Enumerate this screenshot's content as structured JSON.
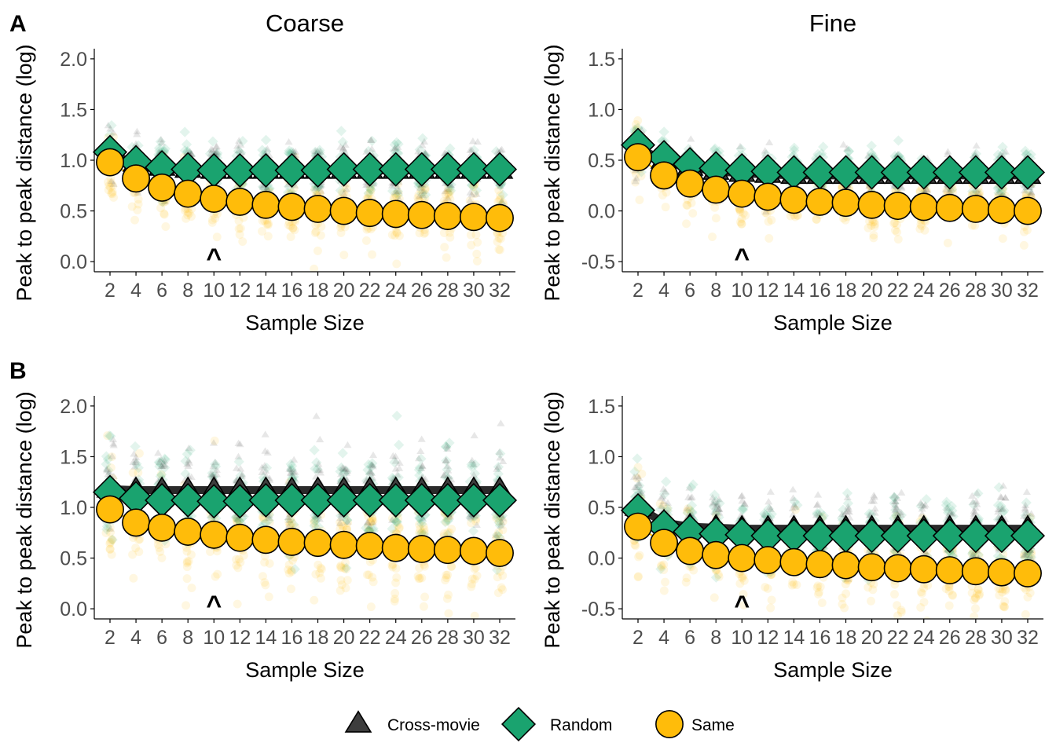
{
  "colors": {
    "Cross-movie": "#3d3d3d",
    "Random": "#1aa36f",
    "Same": "#ffbc0a"
  },
  "legend": [
    {
      "name": "Cross-movie",
      "shape": "triangle"
    },
    {
      "name": "Random",
      "shape": "diamond"
    },
    {
      "name": "Same",
      "shape": "circle"
    }
  ],
  "chart_data": [
    {
      "type": "scatter",
      "panel_tag": "A",
      "facet_title": "Coarse",
      "xlabel": "Sample Size",
      "ylabel": "Peak to peak distance (log)",
      "x": [
        2,
        4,
        6,
        8,
        10,
        12,
        14,
        16,
        18,
        20,
        22,
        24,
        26,
        28,
        30,
        32
      ],
      "x_tick_labels": [
        "2",
        "4",
        "6",
        "8",
        "10",
        "12",
        "14",
        "16",
        "18",
        "20",
        "22",
        "24",
        "26",
        "28",
        "30",
        "32"
      ],
      "ylim": [
        -0.1,
        2.1
      ],
      "y_ticks": [
        0.0,
        0.5,
        1.0,
        1.5,
        2.0
      ],
      "y_tick_labels": [
        "0.0",
        "0.5",
        "1.0",
        "1.5",
        "2.0"
      ],
      "marker_x": 10,
      "marker_symbol": "^",
      "series": [
        {
          "name": "Cross-movie",
          "values": [
            1.06,
            0.97,
            0.93,
            0.91,
            0.9,
            0.9,
            0.9,
            0.9,
            0.9,
            0.9,
            0.9,
            0.9,
            0.9,
            0.9,
            0.9,
            0.9
          ],
          "spread": 0.13
        },
        {
          "name": "Random",
          "values": [
            1.08,
            0.98,
            0.93,
            0.91,
            0.9,
            0.9,
            0.9,
            0.9,
            0.9,
            0.91,
            0.91,
            0.91,
            0.91,
            0.91,
            0.91,
            0.91
          ],
          "spread": 0.12
        },
        {
          "name": "Same",
          "values": [
            0.98,
            0.82,
            0.73,
            0.67,
            0.62,
            0.59,
            0.56,
            0.54,
            0.52,
            0.5,
            0.48,
            0.47,
            0.46,
            0.45,
            0.44,
            0.43
          ],
          "spread": 0.17
        }
      ]
    },
    {
      "type": "scatter",
      "facet_title": "Fine",
      "xlabel": "Sample Size",
      "ylabel": "Peak to peak distance (log)",
      "x": [
        2,
        4,
        6,
        8,
        10,
        12,
        14,
        16,
        18,
        20,
        22,
        24,
        26,
        28,
        30,
        32
      ],
      "x_tick_labels": [
        "2",
        "4",
        "6",
        "8",
        "10",
        "12",
        "14",
        "16",
        "18",
        "20",
        "22",
        "24",
        "26",
        "28",
        "30",
        "32"
      ],
      "ylim": [
        -0.6,
        1.6
      ],
      "y_ticks": [
        -0.5,
        0.0,
        0.5,
        1.0,
        1.5
      ],
      "y_tick_labels": [
        "-0.5",
        "0.0",
        "0.5",
        "1.0",
        "1.5"
      ],
      "marker_x": 10,
      "marker_symbol": "^",
      "series": [
        {
          "name": "Cross-movie",
          "values": [
            0.62,
            0.5,
            0.43,
            0.39,
            0.37,
            0.36,
            0.35,
            0.35,
            0.35,
            0.35,
            0.35,
            0.35,
            0.35,
            0.35,
            0.35,
            0.35
          ],
          "spread": 0.11
        },
        {
          "name": "Random",
          "values": [
            0.65,
            0.53,
            0.46,
            0.42,
            0.4,
            0.39,
            0.38,
            0.38,
            0.38,
            0.38,
            0.38,
            0.38,
            0.38,
            0.38,
            0.38,
            0.38
          ],
          "spread": 0.1
        },
        {
          "name": "Same",
          "values": [
            0.53,
            0.35,
            0.27,
            0.21,
            0.17,
            0.14,
            0.11,
            0.09,
            0.08,
            0.06,
            0.05,
            0.04,
            0.03,
            0.02,
            0.01,
            0.0
          ],
          "spread": 0.14
        }
      ]
    },
    {
      "type": "scatter",
      "panel_tag": "B",
      "facet_title": "",
      "xlabel": "Sample Size",
      "ylabel": "Peak to peak distance (log)",
      "x": [
        2,
        4,
        6,
        8,
        10,
        12,
        14,
        16,
        18,
        20,
        22,
        24,
        26,
        28,
        30,
        32
      ],
      "x_tick_labels": [
        "2",
        "4",
        "6",
        "8",
        "10",
        "12",
        "14",
        "16",
        "18",
        "20",
        "22",
        "24",
        "26",
        "28",
        "30",
        "32"
      ],
      "ylim": [
        -0.1,
        2.1
      ],
      "y_ticks": [
        0.0,
        0.5,
        1.0,
        1.5,
        2.0
      ],
      "y_tick_labels": [
        "0.0",
        "0.5",
        "1.0",
        "1.5",
        "2.0"
      ],
      "marker_x": 10,
      "marker_symbol": "^",
      "series": [
        {
          "name": "Cross-movie",
          "values": [
            1.18,
            1.17,
            1.17,
            1.17,
            1.17,
            1.17,
            1.17,
            1.17,
            1.17,
            1.17,
            1.17,
            1.17,
            1.17,
            1.17,
            1.17,
            1.17
          ],
          "spread": 0.22
        },
        {
          "name": "Random",
          "values": [
            1.15,
            1.09,
            1.07,
            1.07,
            1.06,
            1.06,
            1.07,
            1.07,
            1.07,
            1.07,
            1.07,
            1.07,
            1.07,
            1.07,
            1.07,
            1.07
          ],
          "spread": 0.22
        },
        {
          "name": "Same",
          "values": [
            0.98,
            0.85,
            0.8,
            0.76,
            0.73,
            0.7,
            0.68,
            0.66,
            0.65,
            0.63,
            0.62,
            0.6,
            0.59,
            0.58,
            0.57,
            0.55
          ],
          "spread": 0.26
        }
      ]
    },
    {
      "type": "scatter",
      "facet_title": "",
      "xlabel": "Sample Size",
      "ylabel": "Peak to peak distance (log)",
      "x": [
        2,
        4,
        6,
        8,
        10,
        12,
        14,
        16,
        18,
        20,
        22,
        24,
        26,
        28,
        30,
        32
      ],
      "x_tick_labels": [
        "2",
        "4",
        "6",
        "8",
        "10",
        "12",
        "14",
        "16",
        "18",
        "20",
        "22",
        "24",
        "26",
        "28",
        "30",
        "32"
      ],
      "ylim": [
        -0.6,
        1.6
      ],
      "y_ticks": [
        -0.5,
        0.0,
        0.5,
        1.0,
        1.5
      ],
      "y_tick_labels": [
        "-0.5",
        "0.0",
        "0.5",
        "1.0",
        "1.5"
      ],
      "marker_x": 10,
      "marker_symbol": "^",
      "series": [
        {
          "name": "Cross-movie",
          "values": [
            0.5,
            0.35,
            0.31,
            0.3,
            0.29,
            0.29,
            0.29,
            0.29,
            0.29,
            0.29,
            0.29,
            0.29,
            0.29,
            0.29,
            0.29,
            0.29
          ],
          "spread": 0.17
        },
        {
          "name": "Random",
          "values": [
            0.47,
            0.31,
            0.26,
            0.24,
            0.23,
            0.22,
            0.22,
            0.22,
            0.22,
            0.22,
            0.22,
            0.22,
            0.22,
            0.22,
            0.22,
            0.22
          ],
          "spread": 0.17
        },
        {
          "name": "Same",
          "values": [
            0.31,
            0.15,
            0.07,
            0.03,
            0.0,
            -0.02,
            -0.04,
            -0.06,
            -0.07,
            -0.09,
            -0.1,
            -0.11,
            -0.12,
            -0.13,
            -0.14,
            -0.15
          ],
          "spread": 0.2
        }
      ]
    }
  ]
}
